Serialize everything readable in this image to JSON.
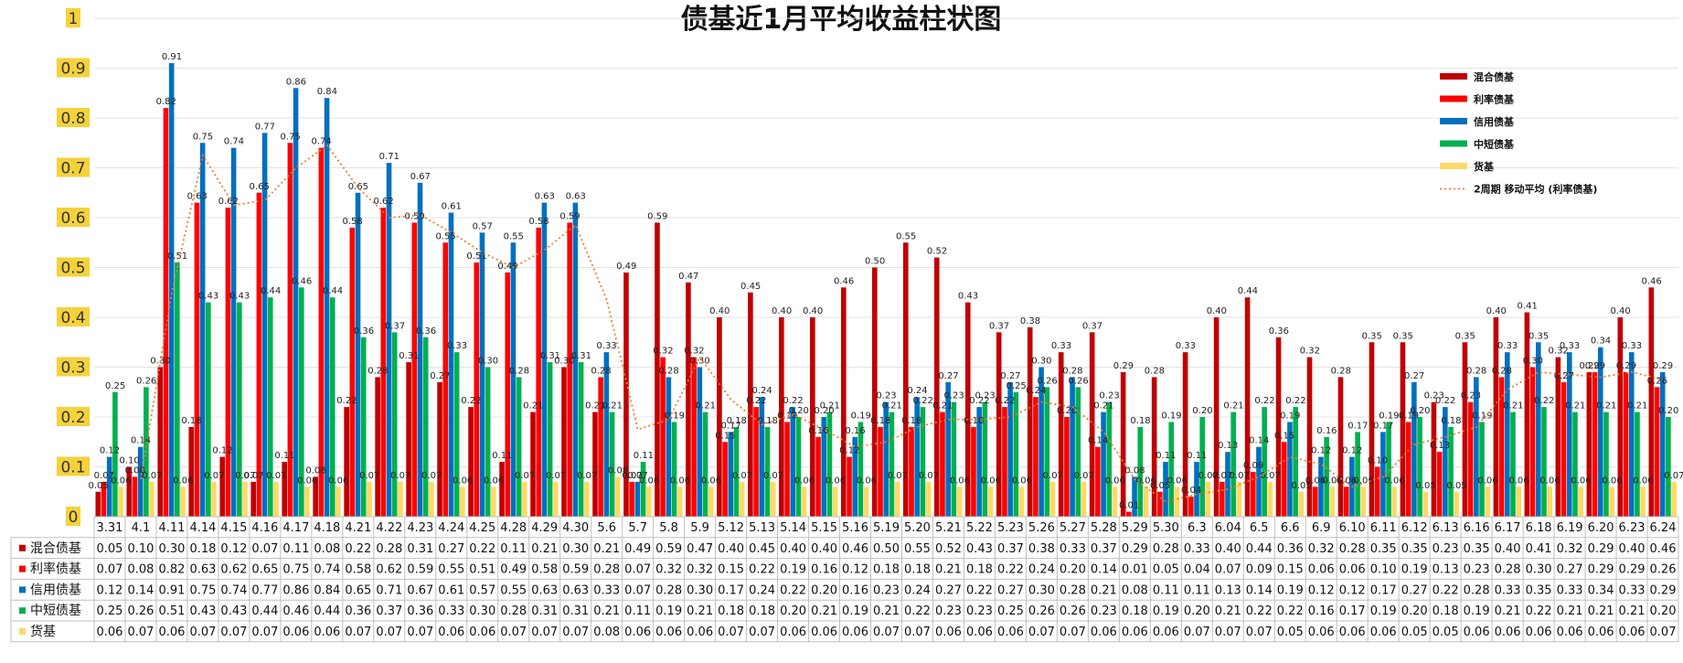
{
  "chart_data": {
    "type": "bar",
    "title": "债基近1月平均收益柱状图",
    "ylim": [
      0,
      1
    ],
    "yticks": [
      "0",
      "0.1",
      "0.2",
      "0.3",
      "0.4",
      "0.5",
      "0.6",
      "0.7",
      "0.8",
      "0.9",
      "1"
    ],
    "legend_position": "top-right",
    "grid": true,
    "categories": [
      "3.31",
      "4.1",
      "4.11",
      "4.14",
      "4.15",
      "4.16",
      "4.17",
      "4.18",
      "4.21",
      "4.22",
      "4.23",
      "4.24",
      "4.25",
      "4.28",
      "4.29",
      "4.30",
      "5.6",
      "5.7",
      "5.8",
      "5.9",
      "5.12",
      "5.13",
      "5.14",
      "5.15",
      "5.16",
      "5.19",
      "5.20",
      "5.21",
      "5.22",
      "5.23",
      "5.26",
      "5.27",
      "5.28",
      "5.29",
      "5.30",
      "6.3",
      "6.04",
      "6.5",
      "6.6",
      "6.9",
      "6.10",
      "6.11",
      "6.12",
      "6.13",
      "6.16",
      "6.17",
      "6.18",
      "6.19",
      "6.20",
      "6.23",
      "6.24"
    ],
    "series": [
      {
        "name": "混合债基",
        "color": "#c00000",
        "values": [
          0.05,
          0.1,
          0.3,
          0.18,
          0.12,
          0.07,
          0.11,
          0.08,
          0.22,
          0.28,
          0.31,
          0.27,
          0.22,
          0.11,
          0.21,
          0.3,
          0.21,
          0.49,
          0.59,
          0.47,
          0.4,
          0.45,
          0.4,
          0.4,
          0.46,
          0.5,
          0.55,
          0.52,
          0.43,
          0.37,
          0.38,
          0.33,
          0.37,
          0.29,
          0.28,
          0.33,
          0.4,
          0.44,
          0.36,
          0.32,
          0.28,
          0.35,
          0.35,
          0.23,
          0.35,
          0.4,
          0.41,
          0.32,
          0.29,
          0.4,
          0.46
        ]
      },
      {
        "name": "利率债基",
        "color": "#ff0000",
        "values": [
          0.07,
          0.08,
          0.82,
          0.63,
          0.62,
          0.65,
          0.75,
          0.74,
          0.58,
          0.62,
          0.59,
          0.55,
          0.51,
          0.49,
          0.58,
          0.59,
          0.28,
          0.07,
          0.32,
          0.32,
          0.15,
          0.22,
          0.19,
          0.16,
          0.12,
          0.18,
          0.18,
          0.21,
          0.18,
          0.22,
          0.24,
          0.2,
          0.14,
          0.01,
          0.05,
          0.04,
          0.07,
          0.09,
          0.15,
          0.06,
          0.06,
          0.1,
          0.19,
          0.13,
          0.23,
          0.28,
          0.3,
          0.27,
          0.29,
          0.29,
          0.26
        ]
      },
      {
        "name": "信用债基",
        "color": "#0070c0",
        "values": [
          0.12,
          0.14,
          0.91,
          0.75,
          0.74,
          0.77,
          0.86,
          0.84,
          0.65,
          0.71,
          0.67,
          0.61,
          0.57,
          0.55,
          0.63,
          0.63,
          0.33,
          0.07,
          0.28,
          0.3,
          0.17,
          0.24,
          0.22,
          0.2,
          0.16,
          0.23,
          0.24,
          0.27,
          0.22,
          0.27,
          0.3,
          0.28,
          0.21,
          0.08,
          0.11,
          0.11,
          0.13,
          0.14,
          0.19,
          0.12,
          0.12,
          0.17,
          0.27,
          0.22,
          0.28,
          0.33,
          0.35,
          0.33,
          0.34,
          0.33,
          0.29
        ]
      },
      {
        "name": "中短债基",
        "color": "#00b050",
        "values": [
          0.25,
          0.26,
          0.51,
          0.43,
          0.43,
          0.44,
          0.46,
          0.44,
          0.36,
          0.37,
          0.36,
          0.33,
          0.3,
          0.28,
          0.31,
          0.31,
          0.21,
          0.11,
          0.19,
          0.21,
          0.18,
          0.18,
          0.2,
          0.21,
          0.19,
          0.21,
          0.22,
          0.23,
          0.23,
          0.25,
          0.26,
          0.26,
          0.23,
          0.18,
          0.19,
          0.2,
          0.21,
          0.22,
          0.22,
          0.16,
          0.17,
          0.19,
          0.2,
          0.18,
          0.19,
          0.21,
          0.22,
          0.21,
          0.21,
          0.21,
          0.2
        ]
      },
      {
        "name": "货基",
        "color": "#ffd966",
        "values": [
          0.06,
          0.07,
          0.06,
          0.07,
          0.07,
          0.07,
          0.06,
          0.06,
          0.07,
          0.07,
          0.07,
          0.06,
          0.06,
          0.07,
          0.07,
          0.07,
          0.08,
          0.06,
          0.06,
          0.06,
          0.07,
          0.07,
          0.06,
          0.06,
          0.06,
          0.07,
          0.07,
          0.06,
          0.06,
          0.06,
          0.07,
          0.07,
          0.06,
          0.06,
          0.06,
          0.07,
          0.07,
          0.07,
          0.05,
          0.06,
          0.06,
          0.06,
          0.05,
          0.05,
          0.06,
          0.06,
          0.06,
          0.06,
          0.06,
          0.06,
          0.07
        ]
      }
    ],
    "trendline": {
      "name": "2周期 移动平均 (利率债基)",
      "color": "#ed7d31",
      "style": "dotted"
    }
  }
}
